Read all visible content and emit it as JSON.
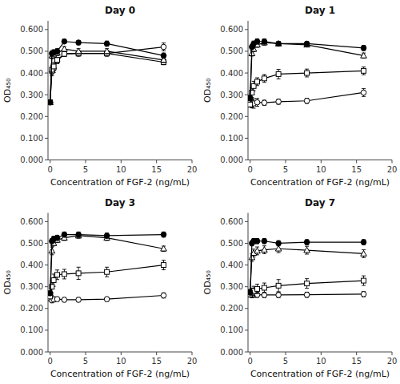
{
  "chart_data": [
    {
      "type": "line",
      "title": "Day 0",
      "xlabel": "Concentration of FGF-2 (ng/mL)",
      "ylabel": "OD₄₅₀",
      "x": [
        0,
        0.25,
        0.5,
        1,
        2,
        4,
        8,
        16
      ],
      "series": [
        {
          "color": "black",
          "marker": "filled-circle",
          "line_style": "solid",
          "values": [
            0.265,
            0.49,
            0.495,
            0.5,
            0.545,
            0.54,
            0.535,
            0.48
          ],
          "errors": [
            0.01,
            0.012,
            0.012,
            0.012,
            0.01,
            0.01,
            0.012,
            0.012
          ]
        },
        {
          "color": "black",
          "marker": "open-triangle",
          "line_style": "solid",
          "values": [
            0.265,
            0.48,
            0.485,
            0.492,
            0.51,
            0.5,
            0.5,
            0.46
          ],
          "errors": [
            0.01,
            0.015,
            0.012,
            0.012,
            0.012,
            0.012,
            0.012,
            0.012
          ]
        },
        {
          "color": "black",
          "marker": "open-square",
          "line_style": "solid",
          "values": [
            0.265,
            0.415,
            0.43,
            0.46,
            0.488,
            0.49,
            0.49,
            0.45
          ],
          "errors": [
            0.01,
            0.018,
            0.018,
            0.012,
            0.012,
            0.012,
            0.012,
            0.012
          ]
        },
        {
          "color": "black",
          "marker": "open-circle",
          "line_style": "solid",
          "values": [
            0.265,
            0.405,
            0.42,
            0.455,
            0.488,
            0.49,
            0.49,
            0.52
          ],
          "errors": [
            0.01,
            0.018,
            0.018,
            0.012,
            0.012,
            0.012,
            0.012,
            0.018
          ]
        }
      ],
      "xlim": [
        -0.3,
        20
      ],
      "ylim": [
        0.0,
        0.64
      ],
      "xticks": [
        0,
        5,
        10,
        15,
        20
      ],
      "yticks": [
        {
          "value": 0.0,
          "label": "0.000"
        },
        {
          "value": 0.1,
          "label": "0.100"
        },
        {
          "value": 0.2,
          "label": "0.200"
        },
        {
          "value": 0.3,
          "label": "0.300"
        },
        {
          "value": 0.4,
          "label": "0.400"
        },
        {
          "value": 0.5,
          "label": "0.500"
        },
        {
          "value": 0.6,
          "label": "0.600"
        }
      ],
      "grid": false
    },
    {
      "type": "line",
      "title": "Day 1",
      "xlabel": "Concentration of FGF-2 (ng/mL)",
      "ylabel": "OD₄₅₀",
      "x": [
        0,
        0.25,
        0.5,
        1,
        2,
        4,
        8,
        16
      ],
      "series": [
        {
          "color": "black",
          "marker": "filled-circle",
          "line_style": "solid",
          "values": [
            0.285,
            0.52,
            0.535,
            0.545,
            0.545,
            0.535,
            0.535,
            0.515
          ],
          "errors": [
            0.012,
            0.012,
            0.012,
            0.012,
            0.012,
            0.01,
            0.01,
            0.012
          ]
        },
        {
          "color": "black",
          "marker": "open-triangle",
          "line_style": "solid",
          "values": [
            0.285,
            0.49,
            0.51,
            0.53,
            0.54,
            0.535,
            0.53,
            0.48
          ],
          "errors": [
            0.012,
            0.012,
            0.012,
            0.012,
            0.012,
            0.01,
            0.01,
            0.012
          ]
        },
        {
          "color": "black",
          "marker": "open-square",
          "line_style": "solid",
          "values": [
            0.255,
            0.31,
            0.34,
            0.36,
            0.375,
            0.395,
            0.4,
            0.41
          ],
          "errors": [
            0.01,
            0.022,
            0.022,
            0.018,
            0.018,
            0.022,
            0.018,
            0.018
          ]
        },
        {
          "color": "black",
          "marker": "open-circle",
          "line_style": "solid",
          "values": [
            0.255,
            0.258,
            0.26,
            0.265,
            0.263,
            0.268,
            0.272,
            0.31
          ],
          "errors": [
            0.01,
            0.018,
            0.022,
            0.018,
            0.012,
            0.012,
            0.012,
            0.018
          ]
        }
      ],
      "xlim": [
        -0.3,
        20
      ],
      "ylim": [
        0.0,
        0.64
      ],
      "xticks": [
        0,
        5,
        10,
        15,
        20
      ],
      "yticks": [
        {
          "value": 0.0,
          "label": "0.000"
        },
        {
          "value": 0.1,
          "label": "0.100"
        },
        {
          "value": 0.2,
          "label": "0.200"
        },
        {
          "value": 0.3,
          "label": "0.300"
        },
        {
          "value": 0.4,
          "label": "0.400"
        },
        {
          "value": 0.5,
          "label": "0.500"
        },
        {
          "value": 0.6,
          "label": "0.600"
        }
      ],
      "grid": false
    },
    {
      "type": "line",
      "title": "Day 3",
      "xlabel": "Concentration of FGF-2 (ng/mL)",
      "ylabel": "OD₄₅₀",
      "x": [
        0,
        0.25,
        0.5,
        1,
        2,
        4,
        8,
        16
      ],
      "series": [
        {
          "color": "black",
          "marker": "filled-circle",
          "line_style": "solid",
          "values": [
            0.27,
            0.51,
            0.52,
            0.525,
            0.54,
            0.54,
            0.535,
            0.54
          ],
          "errors": [
            0.01,
            0.012,
            0.012,
            0.012,
            0.012,
            0.012,
            0.012,
            0.012
          ]
        },
        {
          "color": "black",
          "marker": "open-triangle",
          "line_style": "solid",
          "values": [
            0.27,
            0.465,
            0.5,
            0.515,
            0.525,
            0.535,
            0.525,
            0.475
          ],
          "errors": [
            0.01,
            0.018,
            0.012,
            0.012,
            0.012,
            0.012,
            0.012,
            0.012
          ]
        },
        {
          "color": "black",
          "marker": "open-square",
          "line_style": "solid",
          "values": [
            0.255,
            0.3,
            0.33,
            0.355,
            0.358,
            0.362,
            0.368,
            0.4
          ],
          "errors": [
            0.01,
            0.028,
            0.028,
            0.022,
            0.022,
            0.028,
            0.022,
            0.022
          ]
        },
        {
          "color": "black",
          "marker": "open-circle",
          "line_style": "solid",
          "values": [
            0.245,
            0.238,
            0.242,
            0.243,
            0.24,
            0.24,
            0.243,
            0.26
          ],
          "errors": [
            0.01,
            0.012,
            0.012,
            0.01,
            0.01,
            0.01,
            0.01,
            0.012
          ]
        }
      ],
      "xlim": [
        -0.3,
        20
      ],
      "ylim": [
        0.0,
        0.64
      ],
      "xticks": [
        0,
        5,
        10,
        15,
        20
      ],
      "yticks": [
        {
          "value": 0.0,
          "label": "0.000"
        },
        {
          "value": 0.1,
          "label": "0.100"
        },
        {
          "value": 0.2,
          "label": "0.200"
        },
        {
          "value": 0.3,
          "label": "0.300"
        },
        {
          "value": 0.4,
          "label": "0.400"
        },
        {
          "value": 0.5,
          "label": "0.500"
        },
        {
          "value": 0.6,
          "label": "0.600"
        }
      ],
      "grid": false
    },
    {
      "type": "line",
      "title": "Day 7",
      "xlabel": "Concentration of FGF-2 (ng/mL)",
      "ylabel": "OD₄₅₀",
      "x": [
        0,
        0.25,
        0.5,
        1,
        2,
        4,
        8,
        16
      ],
      "series": [
        {
          "color": "black",
          "marker": "filled-circle",
          "line_style": "solid",
          "values": [
            0.275,
            0.5,
            0.51,
            0.51,
            0.51,
            0.5,
            0.505,
            0.505
          ],
          "errors": [
            0.012,
            0.012,
            0.012,
            0.012,
            0.012,
            0.012,
            0.012,
            0.012
          ]
        },
        {
          "color": "black",
          "marker": "open-triangle",
          "line_style": "solid",
          "values": [
            0.275,
            0.435,
            0.455,
            0.465,
            0.47,
            0.475,
            0.468,
            0.452
          ],
          "errors": [
            0.012,
            0.018,
            0.018,
            0.018,
            0.018,
            0.018,
            0.018,
            0.018
          ]
        },
        {
          "color": "black",
          "marker": "open-square",
          "line_style": "solid",
          "values": [
            0.265,
            0.272,
            0.28,
            0.29,
            0.295,
            0.305,
            0.315,
            0.328
          ],
          "errors": [
            0.012,
            0.022,
            0.022,
            0.022,
            0.022,
            0.028,
            0.022,
            0.022
          ]
        },
        {
          "color": "black",
          "marker": "open-circle",
          "line_style": "solid",
          "values": [
            0.265,
            0.263,
            0.263,
            0.263,
            0.262,
            0.262,
            0.263,
            0.266
          ],
          "errors": [
            0.012,
            0.012,
            0.012,
            0.012,
            0.012,
            0.012,
            0.012,
            0.012
          ]
        }
      ],
      "xlim": [
        -0.3,
        20
      ],
      "ylim": [
        0.0,
        0.64
      ],
      "xticks": [
        0,
        5,
        10,
        15,
        20
      ],
      "yticks": [
        {
          "value": 0.0,
          "label": "0.000"
        },
        {
          "value": 0.1,
          "label": "0.100"
        },
        {
          "value": 0.2,
          "label": "0.200"
        },
        {
          "value": 0.3,
          "label": "0.300"
        },
        {
          "value": 0.4,
          "label": "0.400"
        },
        {
          "value": 0.5,
          "label": "0.500"
        },
        {
          "value": 0.6,
          "label": "0.600"
        }
      ],
      "grid": false
    }
  ]
}
